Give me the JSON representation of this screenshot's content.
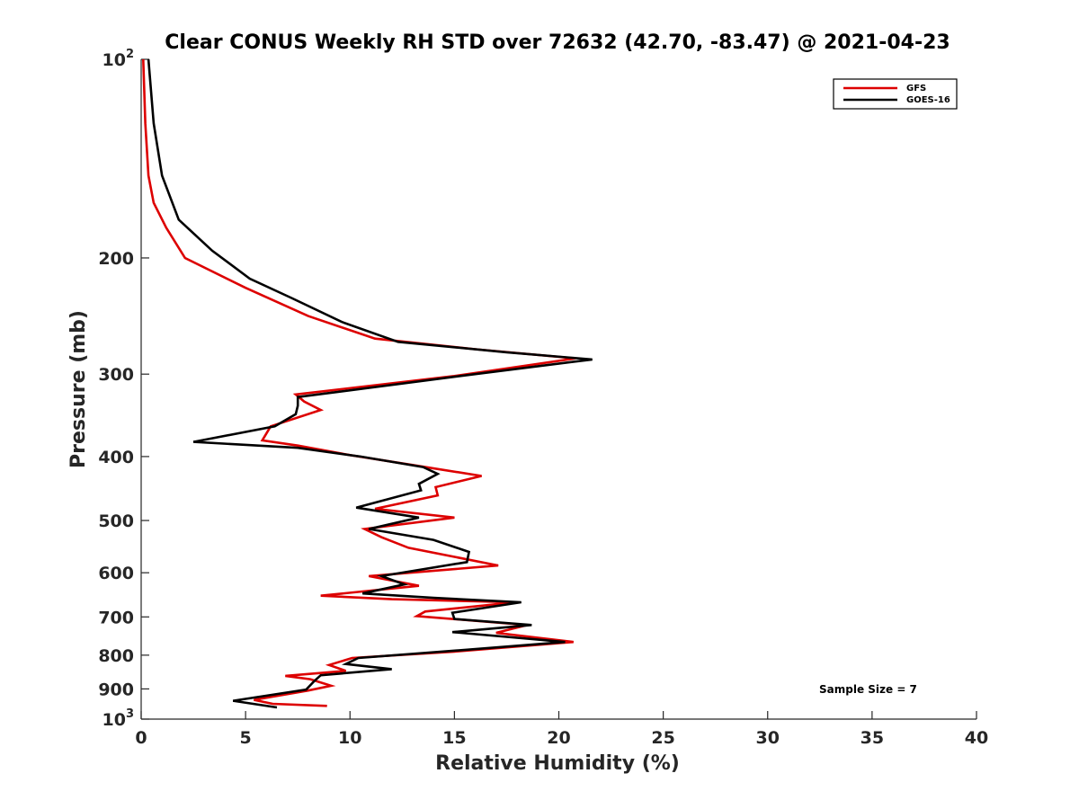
{
  "chart_data": {
    "type": "line",
    "title": "Clear CONUS Weekly RH STD over 72632 (42.70, -83.47) @ 2021-04-23",
    "xlabel": "Relative Humidity (%)",
    "ylabel": "Pressure (mb)",
    "xlim": [
      0,
      40
    ],
    "ylim": [
      100,
      1000
    ],
    "yscale": "log",
    "y_reversed": true,
    "grid": false,
    "legend_position": "top-right",
    "x_ticks": [
      "0",
      "5",
      "10",
      "15",
      "20",
      "25",
      "30",
      "35",
      "40"
    ],
    "y_ticks": [
      {
        "value": 100,
        "base": "10",
        "exp": "2"
      },
      {
        "value": 200,
        "label": "200"
      },
      {
        "value": 300,
        "label": "300"
      },
      {
        "value": 400,
        "label": "400"
      },
      {
        "value": 500,
        "label": "500"
      },
      {
        "value": 600,
        "label": "600"
      },
      {
        "value": 700,
        "label": "700"
      },
      {
        "value": 800,
        "label": "800"
      },
      {
        "value": 900,
        "label": "900"
      },
      {
        "value": 1000,
        "base": "10",
        "exp": "3"
      }
    ],
    "series": [
      {
        "name": "GFS",
        "color": "#dd0000",
        "points": [
          [
            0.1,
            100
          ],
          [
            0.2,
            125
          ],
          [
            0.35,
            150
          ],
          [
            0.6,
            165
          ],
          [
            1.2,
            180
          ],
          [
            2.1,
            200
          ],
          [
            5.0,
            222
          ],
          [
            8.0,
            245
          ],
          [
            11.2,
            265
          ],
          [
            16.0,
            275
          ],
          [
            20.8,
            284
          ],
          [
            15.0,
            302
          ],
          [
            7.4,
            322
          ],
          [
            7.8,
            330
          ],
          [
            8.6,
            340
          ],
          [
            6.2,
            360
          ],
          [
            5.8,
            378
          ],
          [
            7.5,
            385
          ],
          [
            10.0,
            398
          ],
          [
            13.0,
            412
          ],
          [
            16.3,
            428
          ],
          [
            14.1,
            445
          ],
          [
            14.2,
            458
          ],
          [
            11.2,
            480
          ],
          [
            15.0,
            495
          ],
          [
            10.7,
            515
          ],
          [
            11.5,
            530
          ],
          [
            12.8,
            550
          ],
          [
            17.1,
            585
          ],
          [
            10.9,
            607
          ],
          [
            13.3,
            628
          ],
          [
            8.6,
            650
          ],
          [
            12.0,
            658
          ],
          [
            17.9,
            665
          ],
          [
            13.6,
            687
          ],
          [
            13.2,
            698
          ],
          [
            18.5,
            720
          ],
          [
            17.0,
            740
          ],
          [
            20.7,
            764
          ],
          [
            15.0,
            790
          ],
          [
            10.1,
            808
          ],
          [
            9.0,
            828
          ],
          [
            9.8,
            845
          ],
          [
            6.9,
            860
          ],
          [
            8.1,
            870
          ],
          [
            9.1,
            890
          ],
          [
            8.0,
            905
          ],
          [
            5.4,
            935
          ],
          [
            6.3,
            948
          ],
          [
            8.9,
            955
          ]
        ]
      },
      {
        "name": "GOES-16",
        "color": "#000000",
        "points": [
          [
            0.35,
            100
          ],
          [
            0.6,
            125
          ],
          [
            1.0,
            150
          ],
          [
            1.8,
            175
          ],
          [
            3.4,
            195
          ],
          [
            5.2,
            215
          ],
          [
            7.2,
            230
          ],
          [
            9.6,
            250
          ],
          [
            12.3,
            268
          ],
          [
            17.5,
            278
          ],
          [
            21.6,
            285
          ],
          [
            16.0,
            300
          ],
          [
            7.5,
            325
          ],
          [
            7.5,
            335
          ],
          [
            7.4,
            345
          ],
          [
            6.4,
            360
          ],
          [
            2.5,
            380
          ],
          [
            7.5,
            388
          ],
          [
            10.5,
            400
          ],
          [
            13.5,
            415
          ],
          [
            14.2,
            425
          ],
          [
            13.3,
            440
          ],
          [
            13.4,
            450
          ],
          [
            10.3,
            478
          ],
          [
            13.3,
            495
          ],
          [
            10.9,
            515
          ],
          [
            14.0,
            535
          ],
          [
            15.7,
            558
          ],
          [
            15.6,
            578
          ],
          [
            11.5,
            607
          ],
          [
            12.6,
            625
          ],
          [
            10.6,
            645
          ],
          [
            14.0,
            655
          ],
          [
            18.2,
            665
          ],
          [
            14.9,
            690
          ],
          [
            15.0,
            705
          ],
          [
            18.7,
            720
          ],
          [
            14.9,
            738
          ],
          [
            20.3,
            764
          ],
          [
            15.6,
            785
          ],
          [
            10.4,
            808
          ],
          [
            9.8,
            825
          ],
          [
            12.0,
            840
          ],
          [
            8.6,
            858
          ],
          [
            8.3,
            875
          ],
          [
            7.9,
            902
          ],
          [
            4.4,
            938
          ],
          [
            6.5,
            960
          ]
        ]
      }
    ],
    "annotation": "Sample Size = 7"
  }
}
